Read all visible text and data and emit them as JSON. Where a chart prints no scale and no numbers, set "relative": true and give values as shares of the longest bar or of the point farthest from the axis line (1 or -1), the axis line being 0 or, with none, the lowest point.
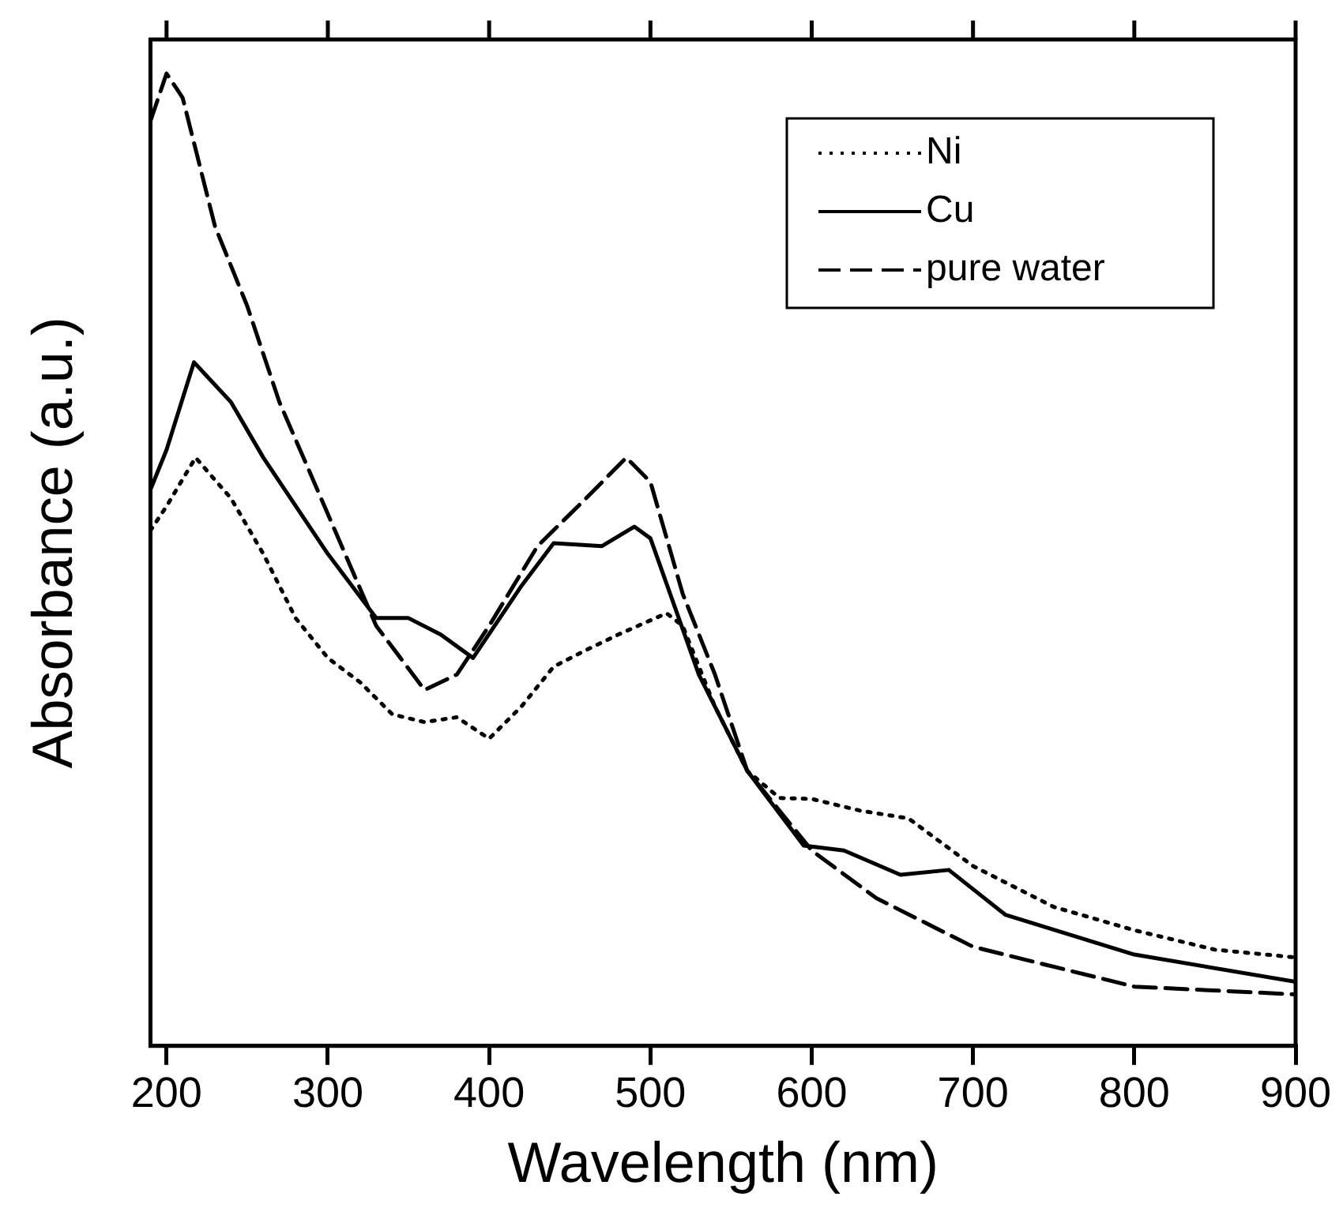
{
  "chart_data": {
    "type": "line",
    "relative": true,
    "xlabel": "Wavelength (nm)",
    "ylabel": "Absorbance (a.u.)",
    "xlim": [
      190,
      900
    ],
    "xticks": [
      200,
      300,
      400,
      500,
      600,
      700,
      800,
      900
    ],
    "legend": "top right",
    "grid": false,
    "marker": "none",
    "series": [
      {
        "name": "Ni",
        "color": "#000000",
        "line_style": "dotted",
        "x": [
          190,
          200,
          218,
          240,
          260,
          280,
          300,
          320,
          340,
          360,
          380,
          400,
          420,
          440,
          460,
          480,
          510,
          520,
          540,
          560,
          580,
          600,
          630,
          660,
          700,
          750,
          800,
          850,
          900
        ],
        "values": [
          0.53,
          0.555,
          0.605,
          0.563,
          0.506,
          0.44,
          0.399,
          0.374,
          0.341,
          0.333,
          0.338,
          0.316,
          0.349,
          0.39,
          0.407,
          0.423,
          0.445,
          0.432,
          0.349,
          0.283,
          0.255,
          0.254,
          0.242,
          0.234,
          0.185,
          0.143,
          0.119,
          0.099,
          0.091
        ]
      },
      {
        "name": "Cu",
        "color": "#000000",
        "line_style": "solid",
        "x": [
          190,
          200,
          217,
          240,
          260,
          300,
          330,
          350,
          370,
          390,
          420,
          440,
          470,
          490,
          500,
          530,
          560,
          595,
          620,
          655,
          685,
          720,
          800,
          900
        ],
        "values": [
          0.572,
          0.613,
          0.703,
          0.662,
          0.605,
          0.506,
          0.44,
          0.44,
          0.423,
          0.399,
          0.473,
          0.517,
          0.514,
          0.534,
          0.522,
          0.382,
          0.283,
          0.206,
          0.201,
          0.176,
          0.181,
          0.135,
          0.094,
          0.066
        ]
      },
      {
        "name": "pure water",
        "color": "#000000",
        "line_style": "dashed",
        "x": [
          190,
          200,
          210,
          220,
          230,
          250,
          270,
          300,
          330,
          360,
          380,
          400,
          430,
          460,
          485,
          500,
          520,
          540,
          560,
          600,
          640,
          700,
          800,
          900
        ],
        "values": [
          0.951,
          1,
          0.975,
          0.909,
          0.843,
          0.761,
          0.662,
          0.547,
          0.432,
          0.366,
          0.382,
          0.432,
          0.514,
          0.563,
          0.605,
          0.58,
          0.465,
          0.382,
          0.283,
          0.201,
          0.152,
          0.102,
          0.061,
          0.053
        ]
      }
    ]
  }
}
